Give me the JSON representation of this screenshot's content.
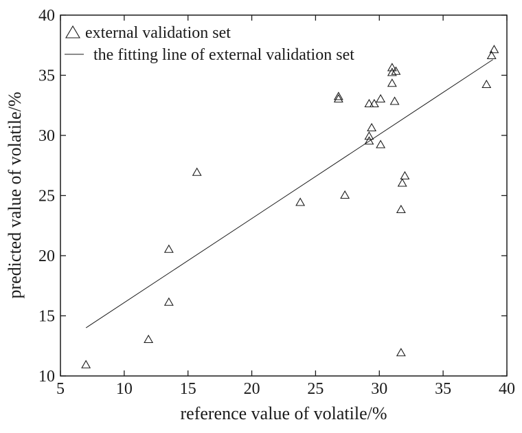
{
  "chart_data": {
    "type": "scatter",
    "xlabel": "reference value of volatile/%",
    "ylabel": "predicted value of volatile/%",
    "xlim": [
      5,
      40
    ],
    "ylim": [
      10,
      40
    ],
    "xticks": [
      5,
      10,
      15,
      20,
      25,
      30,
      35,
      40
    ],
    "yticks": [
      10,
      15,
      20,
      25,
      30,
      35,
      40
    ],
    "grid": false,
    "legend_position": "top-left",
    "series": [
      {
        "name": "external validation set",
        "marker": "triangle-open",
        "points": [
          {
            "x": 7.0,
            "y": 10.9
          },
          {
            "x": 11.9,
            "y": 13.0
          },
          {
            "x": 13.5,
            "y": 20.5
          },
          {
            "x": 13.5,
            "y": 16.1
          },
          {
            "x": 15.7,
            "y": 26.9
          },
          {
            "x": 23.8,
            "y": 24.4
          },
          {
            "x": 26.8,
            "y": 33.2
          },
          {
            "x": 26.8,
            "y": 33.0
          },
          {
            "x": 27.3,
            "y": 25.0
          },
          {
            "x": 29.2,
            "y": 32.6
          },
          {
            "x": 29.6,
            "y": 32.6
          },
          {
            "x": 29.2,
            "y": 29.9
          },
          {
            "x": 29.2,
            "y": 29.5
          },
          {
            "x": 29.4,
            "y": 30.6
          },
          {
            "x": 30.1,
            "y": 33.0
          },
          {
            "x": 30.1,
            "y": 29.2
          },
          {
            "x": 31.0,
            "y": 35.6
          },
          {
            "x": 31.0,
            "y": 35.2
          },
          {
            "x": 31.3,
            "y": 35.3
          },
          {
            "x": 31.0,
            "y": 34.3
          },
          {
            "x": 31.2,
            "y": 32.8
          },
          {
            "x": 31.8,
            "y": 26.0
          },
          {
            "x": 32.0,
            "y": 26.6
          },
          {
            "x": 31.7,
            "y": 23.8
          },
          {
            "x": 31.7,
            "y": 11.9
          },
          {
            "x": 38.4,
            "y": 34.2
          },
          {
            "x": 38.8,
            "y": 36.6
          },
          {
            "x": 39.0,
            "y": 37.1
          }
        ]
      },
      {
        "name": "the fitting line of external validation set",
        "type": "line",
        "x": [
          7.0,
          38.9
        ],
        "y": [
          14.0,
          36.3
        ]
      }
    ]
  }
}
